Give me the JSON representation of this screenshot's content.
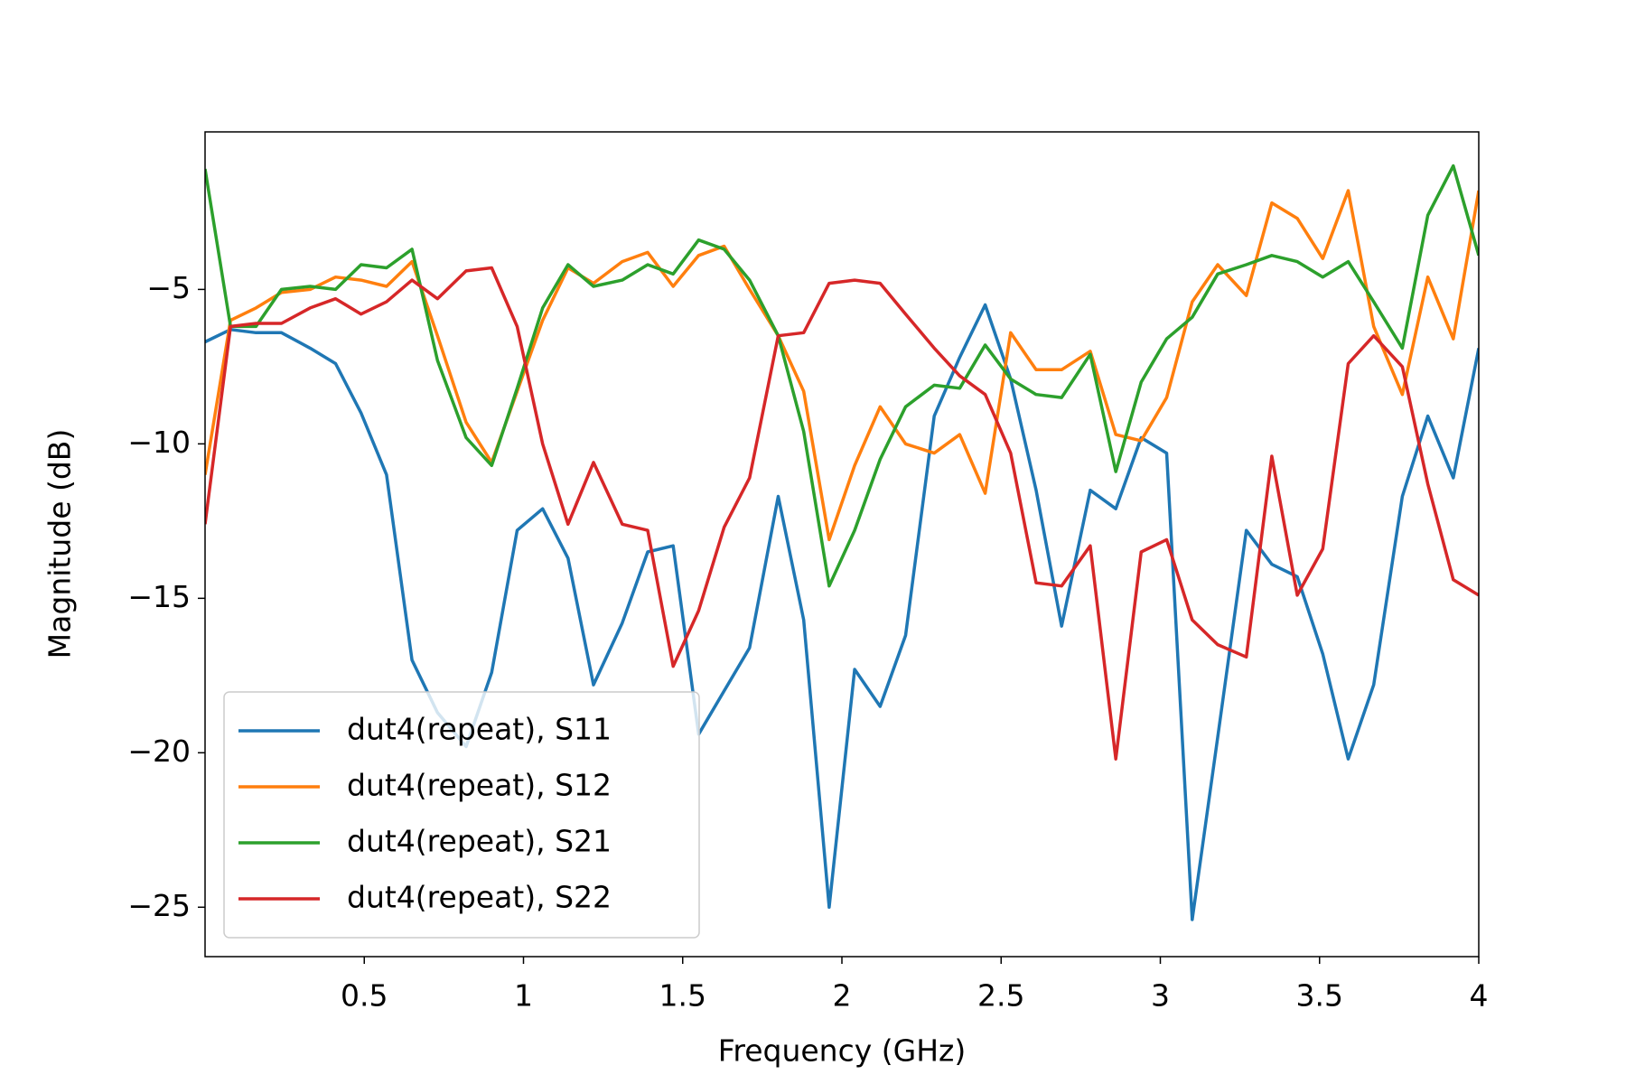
{
  "chart_data": {
    "type": "line",
    "xlabel": "Frequency (GHz)",
    "ylabel": "Magnitude (dB)",
    "x": [
      0,
      0.08,
      0.16,
      0.24,
      0.33,
      0.41,
      0.49,
      0.57,
      0.65,
      0.73,
      0.82,
      0.9,
      0.98,
      1.06,
      1.14,
      1.22,
      1.31,
      1.39,
      1.47,
      1.55,
      1.63,
      1.71,
      1.8,
      1.88,
      1.96,
      2.04,
      2.12,
      2.2,
      2.29,
      2.37,
      2.45,
      2.53,
      2.61,
      2.69,
      2.78,
      2.86,
      2.94,
      3.02,
      3.1,
      3.18,
      3.27,
      3.35,
      3.43,
      3.51,
      3.59,
      3.67,
      3.76,
      3.84,
      3.92,
      4.0
    ],
    "series": [
      {
        "name": "dut4(repeat), S11",
        "color": "#1f77b4",
        "values": [
          -6.7,
          -6.3,
          -6.4,
          -6.4,
          -6.9,
          -7.4,
          -9.0,
          -11.0,
          -17.0,
          -18.7,
          -19.8,
          -17.4,
          -12.8,
          -12.1,
          -13.7,
          -17.8,
          -15.8,
          -13.5,
          -13.3,
          -19.4,
          -18.0,
          -16.6,
          -11.7,
          -15.7,
          -25.0,
          -17.3,
          -18.5,
          -16.2,
          -9.1,
          -7.2,
          -5.5,
          -7.9,
          -11.5,
          -15.9,
          -11.5,
          -12.1,
          -9.8,
          -10.3,
          -25.4,
          -19.5,
          -12.8,
          -13.9,
          -14.3,
          -16.8,
          -20.2,
          -17.8,
          -11.7,
          -9.1,
          -11.1,
          -6.9
        ]
      },
      {
        "name": "dut4(repeat), S12",
        "color": "#ff7f0e",
        "values": [
          -11.0,
          -6.0,
          -5.6,
          -5.1,
          -5.0,
          -4.6,
          -4.7,
          -4.9,
          -4.1,
          -6.5,
          -9.3,
          -10.6,
          -8.3,
          -6.0,
          -4.3,
          -4.8,
          -4.1,
          -3.8,
          -4.9,
          -3.9,
          -3.6,
          -5.0,
          -6.5,
          -8.3,
          -13.1,
          -10.7,
          -8.8,
          -10.0,
          -10.3,
          -9.7,
          -11.6,
          -6.4,
          -7.6,
          -7.6,
          -7.0,
          -9.7,
          -9.9,
          -8.5,
          -5.4,
          -4.2,
          -5.2,
          -2.2,
          -2.7,
          -4.0,
          -1.8,
          -6.2,
          -8.4,
          -4.6,
          -6.6,
          -1.8
        ]
      },
      {
        "name": "dut4(repeat), S21",
        "color": "#2ca02c",
        "values": [
          -1.1,
          -6.2,
          -6.2,
          -5.0,
          -4.9,
          -5.0,
          -4.2,
          -4.3,
          -3.7,
          -7.3,
          -9.8,
          -10.7,
          -8.2,
          -5.6,
          -4.2,
          -4.9,
          -4.7,
          -4.2,
          -4.5,
          -3.4,
          -3.7,
          -4.7,
          -6.5,
          -9.6,
          -14.6,
          -12.8,
          -10.5,
          -8.8,
          -8.1,
          -8.2,
          -6.8,
          -7.9,
          -8.4,
          -8.5,
          -7.1,
          -10.9,
          -8.0,
          -6.6,
          -5.9,
          -4.5,
          -4.2,
          -3.9,
          -4.1,
          -4.6,
          -4.1,
          -5.4,
          -6.9,
          -2.6,
          -1.0,
          -3.9
        ]
      },
      {
        "name": "dut4(repeat), S22",
        "color": "#d62728",
        "values": [
          -12.6,
          -6.2,
          -6.1,
          -6.1,
          -5.6,
          -5.3,
          -5.8,
          -5.4,
          -4.7,
          -5.3,
          -4.4,
          -4.3,
          -6.2,
          -10.0,
          -12.6,
          -10.6,
          -12.6,
          -12.8,
          -17.2,
          -15.4,
          -12.7,
          -11.1,
          -6.5,
          -6.4,
          -4.8,
          -4.7,
          -4.8,
          -5.8,
          -6.9,
          -7.8,
          -8.4,
          -10.3,
          -14.5,
          -14.6,
          -13.3,
          -20.2,
          -13.5,
          -13.1,
          -15.7,
          -16.5,
          -16.9,
          -10.4,
          -14.9,
          -13.4,
          -7.4,
          -6.5,
          -7.5,
          -11.3,
          -14.4,
          -14.9
        ]
      }
    ],
    "xlim": [
      0,
      4
    ],
    "xticks": [
      0.5,
      1,
      1.5,
      2,
      2.5,
      3,
      3.5,
      4
    ],
    "ylim": [
      -26.6,
      0.1
    ],
    "yticks": [
      {
        "value": -5,
        "label": "−5"
      },
      {
        "value": -10,
        "label": "−10"
      },
      {
        "value": -15,
        "label": "−15"
      },
      {
        "value": -20,
        "label": "−20"
      },
      {
        "value": -25,
        "label": "−25"
      }
    ],
    "legend": "lower left",
    "grid": false
  }
}
